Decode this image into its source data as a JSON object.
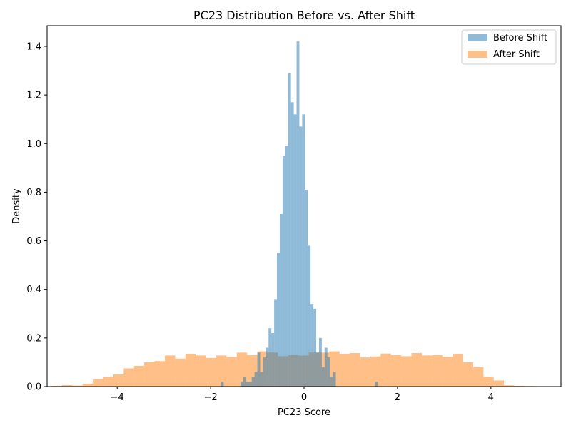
{
  "chart_data": {
    "type": "histogram",
    "title": "PC23 Distribution Before vs. After Shift",
    "xlabel": "PC23 Score",
    "ylabel": "Density",
    "xlim": [
      -5.5,
      5.5
    ],
    "ylim": [
      0,
      1.485
    ],
    "xticks": [
      -4,
      -2,
      0,
      2,
      4
    ],
    "xtick_labels": [
      "−4",
      "−2",
      "0",
      "2",
      "4"
    ],
    "yticks": [
      0.0,
      0.2,
      0.4,
      0.6,
      0.8,
      1.0,
      1.2,
      1.4
    ],
    "ytick_labels": [
      "0.0",
      "0.2",
      "0.4",
      "0.6",
      "0.8",
      "1.0",
      "1.2",
      "1.4"
    ],
    "grid": false,
    "legend_position": "top-right",
    "series": [
      {
        "name": "Before Shift",
        "color": "#1f77b4",
        "alpha": 0.5,
        "bin_start": -1.78,
        "bin_width": 0.06,
        "values": [
          0.02,
          0,
          0,
          0,
          0,
          0,
          0,
          0.02,
          0.04,
          0.02,
          0.02,
          0.04,
          0.06,
          0.14,
          0.06,
          0.12,
          0.16,
          0.24,
          0.22,
          0.36,
          0.55,
          0.71,
          0.95,
          0.99,
          1.29,
          1.17,
          1.12,
          1.42,
          1.07,
          1.12,
          0.81,
          0.58,
          0.34,
          0.32,
          0.14,
          0.2,
          0.08,
          0.16,
          0.12,
          0.04,
          0.06,
          0,
          0,
          0,
          0,
          0,
          0,
          0,
          0,
          0,
          0,
          0,
          0,
          0,
          0,
          0.02
        ]
      },
      {
        "name": "After Shift",
        "color": "#ff7f0e",
        "alpha": 0.5,
        "bin_start": -5.4,
        "bin_width": 0.22,
        "values": [
          0.003,
          0.006,
          0.004,
          0.012,
          0.03,
          0.04,
          0.05,
          0.075,
          0.085,
          0.1,
          0.105,
          0.128,
          0.115,
          0.135,
          0.128,
          0.118,
          0.128,
          0.122,
          0.14,
          0.13,
          0.145,
          0.14,
          0.125,
          0.13,
          0.128,
          0.14,
          0.14,
          0.145,
          0.135,
          0.138,
          0.12,
          0.124,
          0.136,
          0.13,
          0.125,
          0.138,
          0.128,
          0.13,
          0.122,
          0.135,
          0.1,
          0.08,
          0.04,
          0.025,
          0.005,
          0.003,
          0.002
        ]
      }
    ]
  }
}
